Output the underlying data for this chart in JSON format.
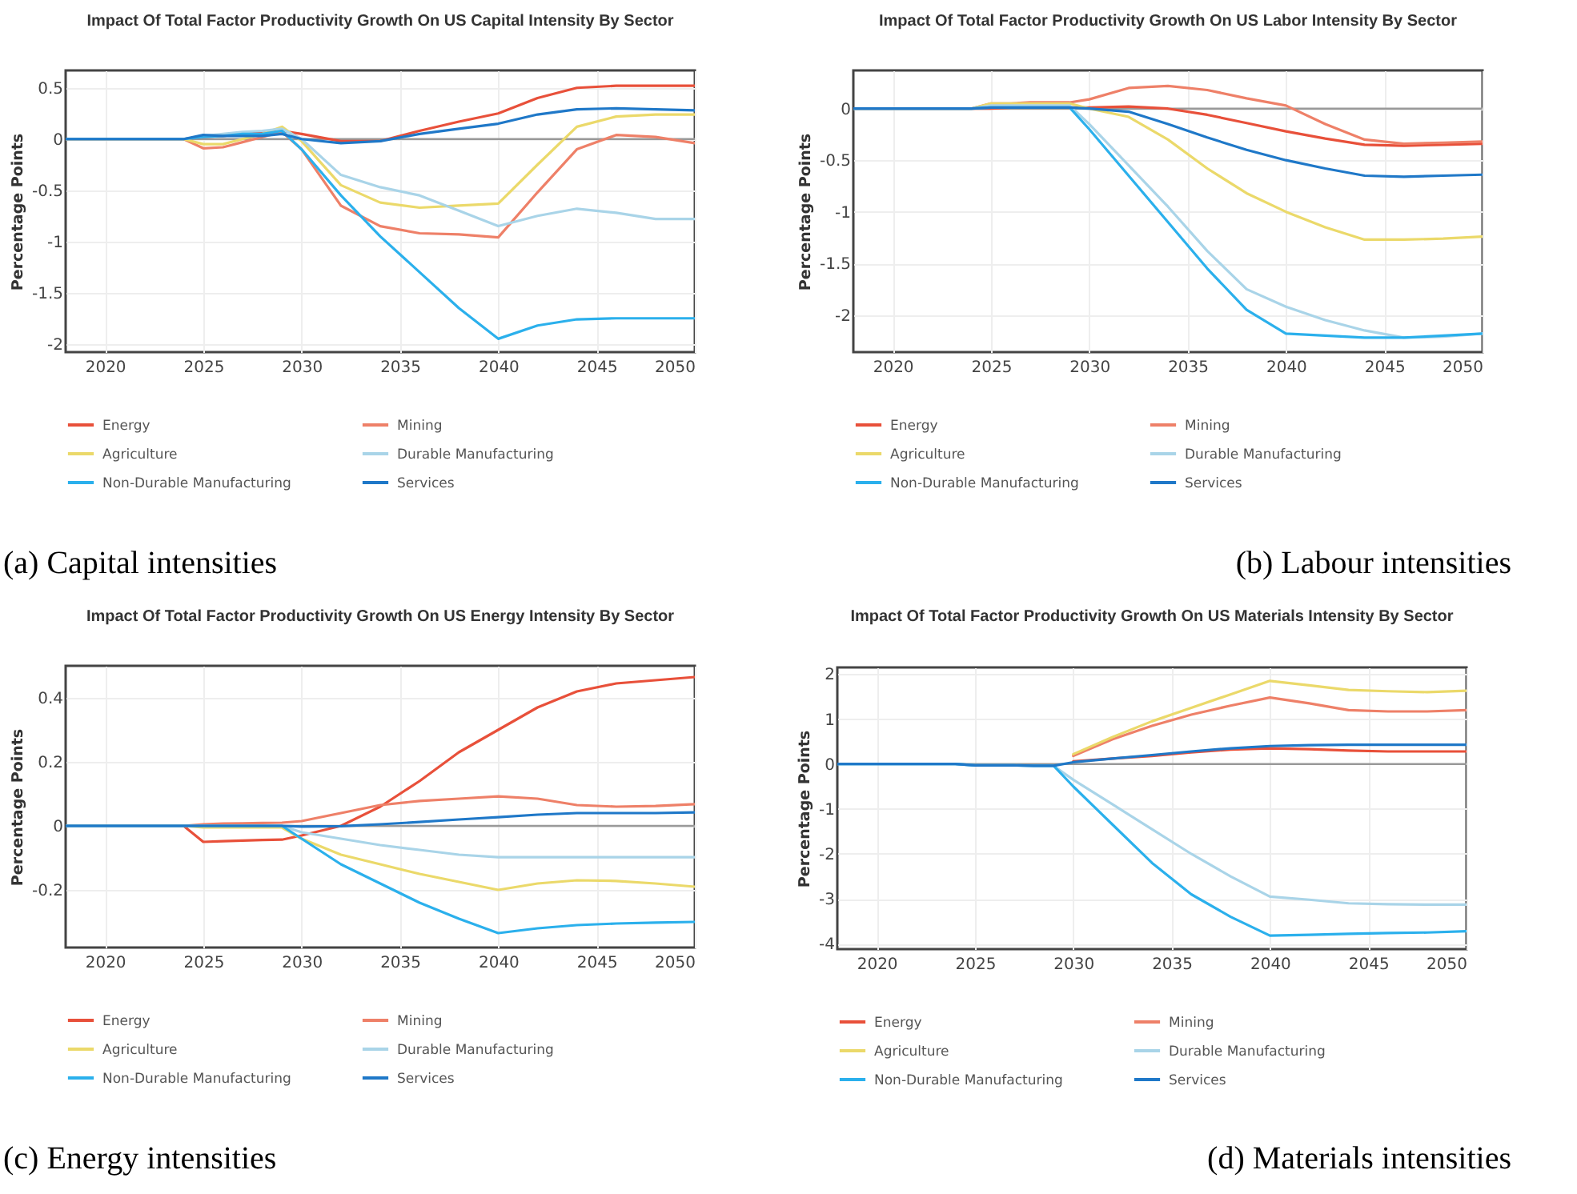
{
  "chart_data": [
    {
      "type": "line",
      "title": "Impact Of Total Factor Productivity Growth On US Capital Intensity By Sector",
      "ylabel": "Percentage Points",
      "annotations": [
        "(a) Capital intensities"
      ],
      "x": [
        2018,
        2024,
        2025,
        2026,
        2027,
        2028,
        2029,
        2030,
        2032,
        2034,
        2036,
        2038,
        2040,
        2042,
        2044,
        2046,
        2048,
        2050
      ],
      "series": [
        {
          "name": "Energy",
          "color": "#e8503a",
          "values": [
            0,
            0,
            0.02,
            0.03,
            0.05,
            0.06,
            0.08,
            0.05,
            -0.02,
            -0.02,
            0.08,
            0.17,
            0.25,
            0.4,
            0.5,
            0.52,
            0.52,
            0.52
          ]
        },
        {
          "name": "Mining",
          "color": "#ee8068",
          "values": [
            0,
            0,
            -0.09,
            -0.08,
            -0.03,
            0.02,
            0.07,
            -0.1,
            -0.65,
            -0.85,
            -0.92,
            -0.93,
            -0.96,
            -0.52,
            -0.1,
            0.04,
            0.02,
            -0.04
          ]
        },
        {
          "name": "Agriculture",
          "color": "#ebd96a",
          "values": [
            0,
            0,
            -0.05,
            -0.05,
            0,
            0.05,
            0.12,
            -0.02,
            -0.45,
            -0.62,
            -0.67,
            -0.65,
            -0.63,
            -0.25,
            0.12,
            0.22,
            0.24,
            0.24
          ]
        },
        {
          "name": "Durable Manufacturing",
          "color": "#a9d4e8",
          "values": [
            0,
            0,
            0.03,
            0.05,
            0.07,
            0.08,
            0.1,
            0,
            -0.35,
            -0.47,
            -0.55,
            -0.7,
            -0.85,
            -0.75,
            -0.68,
            -0.72,
            -0.78,
            -0.78
          ]
        },
        {
          "name": "Non-Durable Manufacturing",
          "color": "#2bb0ec",
          "values": [
            0,
            0,
            0.02,
            0.03,
            0.05,
            0.05,
            0.08,
            -0.1,
            -0.55,
            -0.95,
            -1.3,
            -1.65,
            -1.95,
            -1.82,
            -1.76,
            -1.75,
            -1.75,
            -1.75
          ]
        },
        {
          "name": "Services",
          "color": "#1f78c8",
          "values": [
            0,
            0,
            0.04,
            0.03,
            0.03,
            0.03,
            0.05,
            0,
            -0.04,
            -0.02,
            0.05,
            0.1,
            0.15,
            0.24,
            0.29,
            0.3,
            0.29,
            0.28
          ]
        }
      ],
      "xlim": [
        2018,
        2050
      ],
      "xticks": [
        2020,
        2025,
        2030,
        2035,
        2040,
        2045,
        2050
      ],
      "ylim": [
        -2.08,
        0.67
      ],
      "yticks": [
        -2,
        -1.5,
        -1,
        -0.5,
        0,
        0.5
      ],
      "ref_lines": [
        {
          "axis": "y",
          "value": 0,
          "color": "#999999"
        }
      ],
      "grid": true,
      "legend": "bottom"
    },
    {
      "type": "line",
      "title": "Impact Of Total Factor Productivity Growth On US Labor Intensity By Sector",
      "ylabel": "Percentage Points",
      "annotations": [
        "(b) Labour intensities"
      ],
      "x": [
        2018,
        2024,
        2025,
        2026,
        2027,
        2028,
        2029,
        2030,
        2032,
        2034,
        2036,
        2038,
        2040,
        2042,
        2044,
        2046,
        2048,
        2050
      ],
      "series": [
        {
          "name": "Energy",
          "color": "#e8503a",
          "values": [
            0,
            0,
            0,
            0.01,
            0.01,
            0.01,
            0.01,
            0.01,
            0.02,
            0,
            -0.06,
            -0.14,
            -0.22,
            -0.29,
            -0.35,
            -0.36,
            -0.35,
            -0.34
          ]
        },
        {
          "name": "Mining",
          "color": "#ee8068",
          "values": [
            0,
            0,
            0.05,
            0.05,
            0.06,
            0.06,
            0.06,
            0.09,
            0.2,
            0.22,
            0.18,
            0.1,
            0.03,
            -0.15,
            -0.3,
            -0.34,
            -0.33,
            -0.32
          ]
        },
        {
          "name": "Agriculture",
          "color": "#ebd96a",
          "values": [
            0,
            0,
            0.05,
            0.05,
            0.05,
            0.05,
            0.05,
            0,
            -0.08,
            -0.3,
            -0.58,
            -0.82,
            -1,
            -1.15,
            -1.27,
            -1.27,
            -1.26,
            -1.24
          ]
        },
        {
          "name": "Durable Manufacturing",
          "color": "#a9d4e8",
          "values": [
            0,
            0,
            0.03,
            0.03,
            0.03,
            0.03,
            0.03,
            -0.15,
            -0.55,
            -0.95,
            -1.38,
            -1.75,
            -1.92,
            -2.05,
            -2.15,
            -2.22,
            -2.21,
            -2.18
          ]
        },
        {
          "name": "Non-Durable Manufacturing",
          "color": "#2bb0ec",
          "values": [
            0,
            0,
            0.01,
            0.01,
            0.01,
            0.01,
            0.01,
            -0.2,
            -0.65,
            -1.1,
            -1.55,
            -1.95,
            -2.18,
            -2.2,
            -2.22,
            -2.22,
            -2.2,
            -2.18
          ]
        },
        {
          "name": "Services",
          "color": "#1f78c8",
          "values": [
            0,
            0,
            0.01,
            0.01,
            0.01,
            0.01,
            0.01,
            0,
            -0.03,
            -0.15,
            -0.28,
            -0.4,
            -0.5,
            -0.58,
            -0.65,
            -0.66,
            -0.65,
            -0.64
          ]
        }
      ],
      "xlim": [
        2018,
        2050
      ],
      "xticks": [
        2020,
        2025,
        2030,
        2035,
        2040,
        2045,
        2050
      ],
      "ylim": [
        -2.36,
        0.37
      ],
      "yticks": [
        -2,
        -1.5,
        -1,
        -0.5,
        0
      ],
      "ref_lines": [
        {
          "axis": "y",
          "value": 0,
          "color": "#999999"
        }
      ],
      "grid": true,
      "legend": "bottom"
    },
    {
      "type": "line",
      "title": "Impact Of Total Factor Productivity Growth On US Energy Intensity By Sector",
      "ylabel": "Percentage Points",
      "annotations": [
        "(c) Energy intensities"
      ],
      "x": [
        2018,
        2024,
        2025,
        2026,
        2027,
        2028,
        2029,
        2030,
        2032,
        2034,
        2036,
        2038,
        2040,
        2042,
        2044,
        2046,
        2048,
        2050
      ],
      "series": [
        {
          "name": "Energy",
          "color": "#e8503a",
          "values": [
            0,
            0,
            -0.05,
            -0.048,
            -0.046,
            -0.044,
            -0.043,
            -0.03,
            0,
            0.06,
            0.14,
            0.23,
            0.3,
            0.37,
            0.42,
            0.445,
            0.455,
            0.465
          ]
        },
        {
          "name": "Mining",
          "color": "#ee8068",
          "values": [
            0,
            0,
            0.005,
            0.007,
            0.008,
            0.009,
            0.01,
            0.015,
            0.04,
            0.065,
            0.078,
            0.085,
            0.092,
            0.085,
            0.065,
            0.06,
            0.062,
            0.068
          ]
        },
        {
          "name": "Agriculture",
          "color": "#ebd96a",
          "values": [
            0,
            0,
            -0.005,
            -0.005,
            -0.005,
            -0.005,
            -0.005,
            -0.04,
            -0.09,
            -0.12,
            -0.15,
            -0.175,
            -0.2,
            -0.18,
            -0.17,
            -0.172,
            -0.18,
            -0.19
          ]
        },
        {
          "name": "Durable Manufacturing",
          "color": "#a9d4e8",
          "values": [
            0,
            0,
            0,
            0,
            0,
            0,
            0,
            -0.02,
            -0.04,
            -0.06,
            -0.075,
            -0.09,
            -0.098,
            -0.098,
            -0.098,
            -0.098,
            -0.098,
            -0.098
          ]
        },
        {
          "name": "Non-Durable Manufacturing",
          "color": "#2bb0ec",
          "values": [
            0,
            0,
            0,
            0,
            0,
            0,
            0,
            -0.04,
            -0.12,
            -0.18,
            -0.24,
            -0.29,
            -0.335,
            -0.32,
            -0.31,
            -0.305,
            -0.302,
            -0.3
          ]
        },
        {
          "name": "Services",
          "color": "#1f78c8",
          "values": [
            0,
            0,
            0,
            0,
            0,
            0,
            0,
            -0.002,
            -0.001,
            0.005,
            0.012,
            0.02,
            0.027,
            0.035,
            0.04,
            0.04,
            0.04,
            0.042
          ]
        }
      ],
      "xlim": [
        2018,
        2050
      ],
      "xticks": [
        2020,
        2025,
        2030,
        2035,
        2040,
        2045,
        2050
      ],
      "ylim": [
        -0.38,
        0.5
      ],
      "yticks": [
        -0.2,
        0,
        0.2,
        0.4
      ],
      "ref_lines": [
        {
          "axis": "y",
          "value": 0,
          "color": "#999999"
        }
      ],
      "grid": true,
      "legend": "bottom"
    },
    {
      "type": "line",
      "title": "Impact Of Total Factor Productivity Growth On US Materials Intensity By Sector",
      "ylabel": "Percentage Points",
      "annotations": [
        "(d) Materials intensities"
      ],
      "x": [
        2018,
        2024,
        2025,
        2026,
        2027,
        2028,
        2029,
        2030,
        2032,
        2034,
        2036,
        2038,
        2040,
        2042,
        2044,
        2046,
        2048,
        2050
      ],
      "series": [
        {
          "name": "Energy",
          "color": "#e8503a",
          "values": [
            null,
            null,
            null,
            null,
            null,
            null,
            null,
            0.06,
            0.12,
            0.18,
            0.26,
            0.32,
            0.35,
            0.33,
            0.3,
            0.28,
            0.28,
            0.28
          ]
        },
        {
          "name": "Mining",
          "color": "#ee8068",
          "values": [
            null,
            null,
            null,
            null,
            null,
            null,
            null,
            0.18,
            0.55,
            0.85,
            1.1,
            1.3,
            1.48,
            1.35,
            1.2,
            1.17,
            1.17,
            1.2
          ]
        },
        {
          "name": "Agriculture",
          "color": "#ebd96a",
          "values": [
            null,
            null,
            null,
            null,
            null,
            null,
            null,
            0.22,
            0.6,
            0.95,
            1.25,
            1.55,
            1.85,
            1.75,
            1.65,
            1.62,
            1.6,
            1.63
          ]
        },
        {
          "name": "Durable Manufacturing",
          "color": "#a9d4e8",
          "values": [
            0,
            0,
            -0.03,
            -0.03,
            -0.03,
            -0.04,
            -0.04,
            -0.35,
            -0.9,
            -1.45,
            -2,
            -2.5,
            -2.95,
            -3.02,
            -3.1,
            -3.12,
            -3.13,
            -3.13
          ]
        },
        {
          "name": "Non-Durable Manufacturing",
          "color": "#2bb0ec",
          "values": [
            0,
            0,
            -0.03,
            -0.03,
            -0.03,
            -0.04,
            -0.04,
            -0.5,
            -1.35,
            -2.2,
            -2.9,
            -3.4,
            -3.82,
            -3.8,
            -3.78,
            -3.76,
            -3.75,
            -3.72
          ]
        },
        {
          "name": "Services",
          "color": "#1f78c8",
          "values": [
            0,
            0,
            -0.03,
            -0.03,
            -0.03,
            -0.04,
            -0.04,
            0.04,
            0.12,
            0.2,
            0.28,
            0.35,
            0.4,
            0.42,
            0.43,
            0.43,
            0.43,
            0.43
          ]
        }
      ],
      "xlim": [
        2018,
        2050
      ],
      "xticks": [
        2020,
        2025,
        2030,
        2035,
        2040,
        2045,
        2050
      ],
      "ylim": [
        -4.12,
        2.15
      ],
      "yticks": [
        -4,
        -3,
        -2,
        -1,
        0,
        1,
        2
      ],
      "ref_lines": [
        {
          "axis": "y",
          "value": 0,
          "color": "#999999"
        }
      ],
      "grid": true,
      "legend": "bottom"
    }
  ]
}
